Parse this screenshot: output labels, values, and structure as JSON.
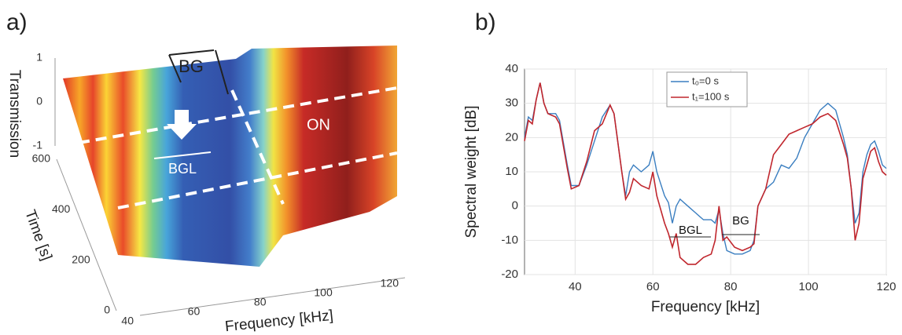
{
  "chart_data": [
    {
      "type": "surface3d",
      "title": "a)",
      "xlabel": "Frequency [kHz]",
      "ylabel": "Time [s]",
      "zlabel": "Transmission",
      "xlim": [
        40,
        120
      ],
      "xticks": [
        40,
        60,
        80,
        100,
        120
      ],
      "ylim": [
        0,
        600
      ],
      "yticks": [
        0,
        200,
        400,
        600
      ],
      "zlim": [
        -1,
        1
      ],
      "zticks": [
        -1,
        0,
        1
      ],
      "annotations": [
        "BG",
        "BGL",
        "ON"
      ]
    },
    {
      "type": "line",
      "title": "b)",
      "xlabel": "Frequency [kHz]",
      "ylabel": "Spectral weight [dB]",
      "xlim": [
        27,
        120
      ],
      "xticks": [
        40,
        60,
        80,
        100,
        120
      ],
      "ylim": [
        -20,
        40
      ],
      "yticks": [
        -20,
        -10,
        0,
        10,
        20,
        30,
        40
      ],
      "grid": true,
      "legend": "top",
      "annotations": [
        "BGL",
        "BG"
      ],
      "x": [
        27,
        28,
        29,
        30,
        31,
        32,
        33,
        35,
        36,
        38,
        39,
        41,
        43,
        45,
        47,
        49,
        50,
        52,
        53,
        54,
        55,
        57,
        59,
        60,
        61,
        63,
        64,
        65,
        66,
        67,
        69,
        71,
        73,
        75,
        76,
        77,
        78,
        79,
        81,
        83,
        85,
        86,
        87,
        89,
        91,
        93,
        95,
        97,
        99,
        101,
        103,
        105,
        107,
        109,
        110,
        111,
        112,
        113,
        114,
        115,
        116,
        117,
        118,
        119,
        120
      ],
      "series": [
        {
          "name": "t₀=0 s",
          "color": "#3a7ec0",
          "values": [
            20,
            26,
            25,
            31,
            36,
            30,
            27,
            27,
            25,
            12,
            6,
            6,
            12,
            19,
            26,
            29.5,
            27,
            10,
            3,
            10,
            12,
            10,
            12,
            16,
            10,
            3,
            1,
            -5,
            0,
            2,
            0,
            -2,
            -4,
            -4,
            -5,
            -1,
            -8,
            -13,
            -14,
            -14,
            -13,
            -10,
            0,
            5,
            7,
            12,
            11,
            14,
            20,
            24,
            28,
            30,
            28,
            20,
            15,
            5,
            -5,
            -2,
            10,
            15,
            18,
            19,
            16,
            12,
            11
          ]
        },
        {
          "name": "t₁=100 s",
          "color": "#c0262d",
          "values": [
            19,
            25,
            24,
            31,
            36,
            30,
            27,
            26,
            24,
            11,
            5,
            6,
            13,
            22,
            24,
            29.5,
            27,
            10,
            2,
            4,
            8,
            6,
            5,
            10,
            3,
            -5,
            -8,
            -12,
            -8,
            -15,
            -17,
            -17,
            -15,
            -14,
            -10,
            0,
            -10,
            -9,
            -12,
            -13,
            -12,
            -11,
            0,
            5,
            15,
            18,
            21,
            22,
            23,
            24,
            26,
            27,
            25,
            18,
            14,
            5,
            -10,
            -5,
            8,
            12,
            16,
            17,
            13,
            10,
            9
          ]
        }
      ]
    }
  ]
}
